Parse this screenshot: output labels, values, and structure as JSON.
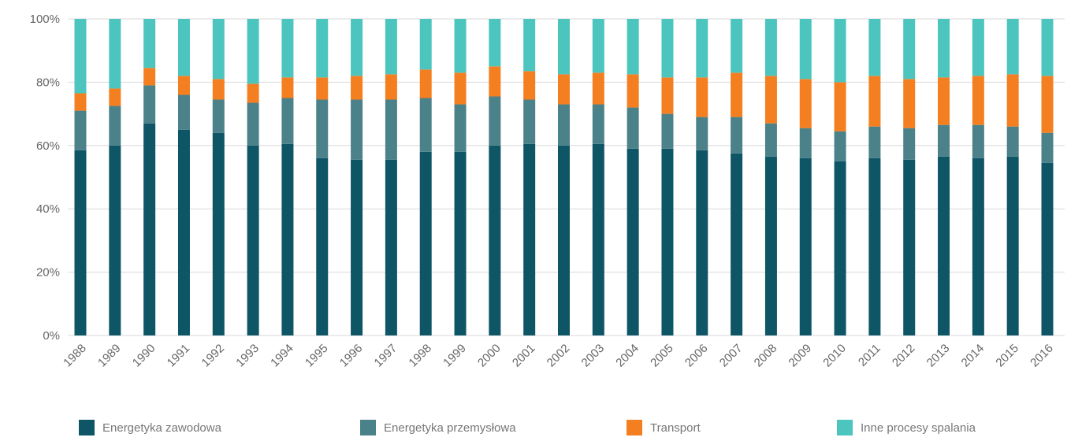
{
  "chart_data": {
    "type": "bar",
    "stacked": true,
    "percent": true,
    "categories": [
      "1988",
      "1989",
      "1990",
      "1991",
      "1992",
      "1993",
      "1994",
      "1995",
      "1996",
      "1997",
      "1998",
      "1999",
      "2000",
      "2001",
      "2002",
      "2003",
      "2004",
      "2005",
      "2006",
      "2007",
      "2008",
      "2009",
      "2010",
      "2011",
      "2012",
      "2013",
      "2014",
      "2015",
      "2016"
    ],
    "series": [
      {
        "name": "Energetyka zawodowa",
        "color": "#0e5566",
        "values": [
          58.5,
          60,
          67,
          65,
          64,
          60,
          60.5,
          56,
          55.5,
          55.5,
          58,
          58,
          60,
          60.5,
          60,
          60.5,
          59,
          59,
          58.5,
          57.5,
          56.5,
          56,
          55,
          56,
          55.5,
          56.5,
          56,
          56.5,
          54.5
        ]
      },
      {
        "name": "Energetyka przemysłowa",
        "color": "#4b8189",
        "values": [
          12.5,
          12.5,
          12,
          11,
          10.5,
          13.5,
          14.5,
          18.5,
          19,
          19,
          17,
          15,
          15.5,
          14,
          13,
          12.5,
          13,
          11,
          10.5,
          11.5,
          10.5,
          9.5,
          9.5,
          10,
          10,
          10,
          10.5,
          9.5,
          9.5
        ]
      },
      {
        "name": "Transport",
        "color": "#f47f20",
        "values": [
          5.5,
          5.5,
          5.5,
          6,
          6.5,
          6,
          6.5,
          7,
          7.5,
          8,
          9,
          10,
          9.5,
          9,
          9.5,
          10,
          10.5,
          11.5,
          12.5,
          14,
          15,
          15.5,
          15.5,
          16,
          15.5,
          15,
          15.5,
          16.5,
          18
        ]
      },
      {
        "name": "Inne procesy spalania",
        "color": "#4cc5be",
        "values": [
          23.5,
          22,
          15.5,
          18,
          19,
          20.5,
          18.5,
          18.5,
          18,
          17.5,
          16,
          17,
          15,
          16.5,
          17.5,
          17,
          17.5,
          18.5,
          18.5,
          17,
          18,
          19,
          20,
          18,
          19,
          18.5,
          18,
          17.5,
          18
        ]
      }
    ],
    "y_ticks": [
      "0%",
      "20%",
      "40%",
      "60%",
      "80%",
      "100%"
    ],
    "ylim": [
      0,
      100
    ],
    "grid": true,
    "legend_position": "bottom"
  }
}
